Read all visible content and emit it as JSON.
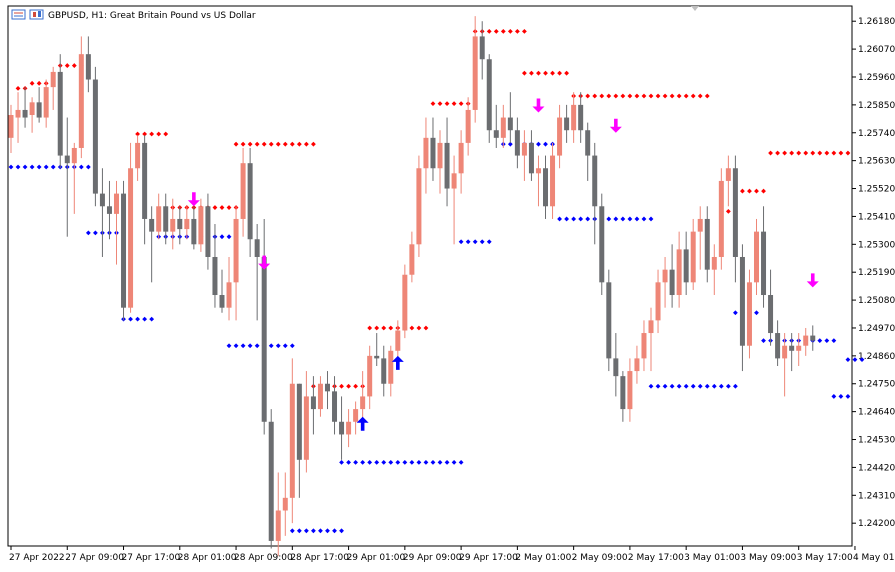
{
  "window": {
    "symbol_title": "GBPUSD, H1:  Great Britain Pound vs US Dollar",
    "icons": [
      "chart-window-icon",
      "candle-type-icon"
    ]
  },
  "colors": {
    "bull": "#ee8677",
    "bear": "#6b6d70",
    "resistance": "#ff0000",
    "support": "#0000ff",
    "sell_arrow": "#ff00ff",
    "buy_arrow": "#0000ff",
    "frame": "#000000",
    "scroll_marker": "#bfbfbf"
  },
  "chart_data": {
    "type": "candlestick",
    "symbol": "GBPUSD",
    "timeframe": "H1",
    "ylim": [
      1.2411,
      1.2624
    ],
    "y_ticks": [
      "1.26180",
      "1.26070",
      "1.25960",
      "1.25850",
      "1.25740",
      "1.25630",
      "1.25520",
      "1.25410",
      "1.25300",
      "1.25190",
      "1.25080",
      "1.24970",
      "1.24860",
      "1.24750",
      "1.24640",
      "1.24530",
      "1.24420",
      "1.24310",
      "1.24200"
    ],
    "x_labels": [
      {
        "label": "27 Apr 2022",
        "bar": 0
      },
      {
        "label": "27 Apr 09:00",
        "bar": 8
      },
      {
        "label": "27 Apr 17:00",
        "bar": 16
      },
      {
        "label": "28 Apr 01:00",
        "bar": 24
      },
      {
        "label": "28 Apr 09:00",
        "bar": 32
      },
      {
        "label": "28 Apr 17:00",
        "bar": 40
      },
      {
        "label": "29 Apr 01:00",
        "bar": 48
      },
      {
        "label": "29 Apr 09:00",
        "bar": 56
      },
      {
        "label": "29 Apr 17:00",
        "bar": 64
      },
      {
        "label": "2 May 01:00",
        "bar": 72
      },
      {
        "label": "2 May 09:00",
        "bar": 80
      },
      {
        "label": "2 May 17:00",
        "bar": 88
      },
      {
        "label": "3 May 01:00",
        "bar": 96
      },
      {
        "label": "3 May 09:00",
        "bar": 104
      },
      {
        "label": "3 May 17:00",
        "bar": 112
      },
      {
        "label": "4 May 01:00",
        "bar": 120
      }
    ],
    "candles": [
      [
        1.2572,
        1.2585,
        1.2566,
        1.2581
      ],
      [
        1.258,
        1.259,
        1.257,
        1.2583
      ],
      [
        1.2583,
        1.2592,
        1.2576,
        1.258
      ],
      [
        1.2581,
        1.2588,
        1.2574,
        1.2586
      ],
      [
        1.2586,
        1.2592,
        1.2578,
        1.258
      ],
      [
        1.258,
        1.2595,
        1.2576,
        1.2592
      ],
      [
        1.2592,
        1.26,
        1.2583,
        1.2598
      ],
      [
        1.2598,
        1.2605,
        1.256,
        1.2565
      ],
      [
        1.2565,
        1.258,
        1.2533,
        1.2562
      ],
      [
        1.2562,
        1.257,
        1.2542,
        1.2568
      ],
      [
        1.2568,
        1.2612,
        1.2564,
        1.2605
      ],
      [
        1.2605,
        1.2612,
        1.259,
        1.2595
      ],
      [
        1.2595,
        1.26,
        1.2545,
        1.255
      ],
      [
        1.255,
        1.256,
        1.2525,
        1.2545
      ],
      [
        1.2545,
        1.2555,
        1.2532,
        1.2542
      ],
      [
        1.2542,
        1.2555,
        1.2522,
        1.255
      ],
      [
        1.255,
        1.2555,
        1.25,
        1.2505
      ],
      [
        1.2505,
        1.257,
        1.2503,
        1.256
      ],
      [
        1.256,
        1.2573,
        1.2555,
        1.257
      ],
      [
        1.257,
        1.2573,
        1.253,
        1.254
      ],
      [
        1.254,
        1.2545,
        1.2515,
        1.2535
      ],
      [
        1.2535,
        1.255,
        1.2532,
        1.2545
      ],
      [
        1.2545,
        1.255,
        1.253,
        1.2535
      ],
      [
        1.2535,
        1.2548,
        1.2528,
        1.254
      ],
      [
        1.254,
        1.2545,
        1.253,
        1.2536
      ],
      [
        1.2536,
        1.2545,
        1.2532,
        1.254
      ],
      [
        1.254,
        1.2545,
        1.2528,
        1.253
      ],
      [
        1.253,
        1.2548,
        1.2527,
        1.2545
      ],
      [
        1.2545,
        1.255,
        1.252,
        1.2525
      ],
      [
        1.2525,
        1.2538,
        1.2505,
        1.251
      ],
      [
        1.251,
        1.252,
        1.2503,
        1.2505
      ],
      [
        1.2505,
        1.2525,
        1.25,
        1.2515
      ],
      [
        1.2515,
        1.2545,
        1.25,
        1.254
      ],
      [
        1.254,
        1.2568,
        1.2533,
        1.2562
      ],
      [
        1.2562,
        1.2568,
        1.2525,
        1.2532
      ],
      [
        1.2532,
        1.2538,
        1.25,
        1.2525
      ],
      [
        1.2525,
        1.254,
        1.2455,
        1.246
      ],
      [
        1.246,
        1.2465,
        1.241,
        1.2413
      ],
      [
        1.2413,
        1.244,
        1.2407,
        1.2425
      ],
      [
        1.2425,
        1.244,
        1.2415,
        1.243
      ],
      [
        1.243,
        1.2485,
        1.242,
        1.2475
      ],
      [
        1.2475,
        1.2475,
        1.243,
        1.2445
      ],
      [
        1.2445,
        1.248,
        1.244,
        1.247
      ],
      [
        1.247,
        1.2478,
        1.2455,
        1.2465
      ],
      [
        1.2465,
        1.2478,
        1.2462,
        1.2475
      ],
      [
        1.2475,
        1.248,
        1.2465,
        1.2472
      ],
      [
        1.2472,
        1.2478,
        1.2455,
        1.246
      ],
      [
        1.246,
        1.247,
        1.2445,
        1.2455
      ],
      [
        1.2455,
        1.2465,
        1.245,
        1.246
      ],
      [
        1.246,
        1.2468,
        1.2455,
        1.2465
      ],
      [
        1.2465,
        1.248,
        1.246,
        1.247
      ],
      [
        1.247,
        1.249,
        1.2465,
        1.2486
      ],
      [
        1.2486,
        1.2495,
        1.2482,
        1.2485
      ],
      [
        1.2485,
        1.249,
        1.247,
        1.2475
      ],
      [
        1.2475,
        1.249,
        1.247,
        1.2488
      ],
      [
        1.2488,
        1.25,
        1.2485,
        1.2496
      ],
      [
        1.2496,
        1.2522,
        1.2493,
        1.2518
      ],
      [
        1.2518,
        1.2535,
        1.2515,
        1.253
      ],
      [
        1.253,
        1.2565,
        1.2525,
        1.256
      ],
      [
        1.256,
        1.258,
        1.255,
        1.2572
      ],
      [
        1.2572,
        1.258,
        1.2555,
        1.256
      ],
      [
        1.256,
        1.2575,
        1.255,
        1.257
      ],
      [
        1.257,
        1.258,
        1.2545,
        1.2552
      ],
      [
        1.2552,
        1.2565,
        1.253,
        1.2558
      ],
      [
        1.2558,
        1.2575,
        1.255,
        1.257
      ],
      [
        1.257,
        1.2588,
        1.2565,
        1.2583
      ],
      [
        1.2583,
        1.262,
        1.2578,
        1.2612
      ],
      [
        1.2612,
        1.2618,
        1.2595,
        1.2603
      ],
      [
        1.2603,
        1.2605,
        1.257,
        1.2575
      ],
      [
        1.2575,
        1.2585,
        1.2568,
        1.2572
      ],
      [
        1.2572,
        1.2585,
        1.2568,
        1.258
      ],
      [
        1.258,
        1.259,
        1.257,
        1.2575
      ],
      [
        1.2575,
        1.258,
        1.256,
        1.2565
      ],
      [
        1.2565,
        1.2575,
        1.2555,
        1.257
      ],
      [
        1.257,
        1.2575,
        1.2555,
        1.2558
      ],
      [
        1.2558,
        1.2565,
        1.2545,
        1.256
      ],
      [
        1.256,
        1.2565,
        1.254,
        1.2545
      ],
      [
        1.2545,
        1.257,
        1.254,
        1.2565
      ],
      [
        1.2565,
        1.2585,
        1.256,
        1.258
      ],
      [
        1.258,
        1.2585,
        1.257,
        1.2575
      ],
      [
        1.2575,
        1.259,
        1.257,
        1.2585
      ],
      [
        1.2585,
        1.259,
        1.257,
        1.2575
      ],
      [
        1.2575,
        1.2578,
        1.2555,
        1.2565
      ],
      [
        1.2565,
        1.257,
        1.253,
        1.2545
      ],
      [
        1.2545,
        1.255,
        1.251,
        1.2515
      ],
      [
        1.2515,
        1.252,
        1.248,
        1.2485
      ],
      [
        1.2485,
        1.2495,
        1.247,
        1.2478
      ],
      [
        1.2478,
        1.248,
        1.246,
        1.2465
      ],
      [
        1.2465,
        1.2485,
        1.246,
        1.248
      ],
      [
        1.248,
        1.249,
        1.2475,
        1.2485
      ],
      [
        1.2485,
        1.25,
        1.248,
        1.2495
      ],
      [
        1.2495,
        1.2505,
        1.248,
        1.25
      ],
      [
        1.25,
        1.252,
        1.2495,
        1.2515
      ],
      [
        1.2515,
        1.2525,
        1.2505,
        1.252
      ],
      [
        1.252,
        1.253,
        1.2505,
        1.251
      ],
      [
        1.251,
        1.2535,
        1.2505,
        1.2528
      ],
      [
        1.2528,
        1.2535,
        1.251,
        1.2515
      ],
      [
        1.2515,
        1.254,
        1.2512,
        1.2535
      ],
      [
        1.2535,
        1.2545,
        1.252,
        1.254
      ],
      [
        1.254,
        1.2545,
        1.2515,
        1.252
      ],
      [
        1.252,
        1.253,
        1.251,
        1.2525
      ],
      [
        1.2525,
        1.256,
        1.252,
        1.2555
      ],
      [
        1.2555,
        1.2565,
        1.2545,
        1.256
      ],
      [
        1.256,
        1.2565,
        1.2515,
        1.2525
      ],
      [
        1.2525,
        1.253,
        1.248,
        1.249
      ],
      [
        1.249,
        1.252,
        1.2485,
        1.2515
      ],
      [
        1.2515,
        1.254,
        1.251,
        1.2535
      ],
      [
        1.2535,
        1.2545,
        1.2505,
        1.251
      ],
      [
        1.251,
        1.252,
        1.249,
        1.2495
      ],
      [
        1.2495,
        1.25,
        1.2482,
        1.2485
      ],
      [
        1.2485,
        1.2495,
        1.247,
        1.249
      ],
      [
        1.249,
        1.2495,
        1.248,
        1.2488
      ],
      [
        1.2488,
        1.2495,
        1.2482,
        1.249
      ],
      [
        1.249,
        1.2497,
        1.2486,
        1.2494
      ],
      [
        1.2494,
        1.2498,
        1.2488,
        1.2492
      ]
    ],
    "resistance_segments": [
      {
        "from": 1,
        "to": 2,
        "price": 1.25915
      },
      {
        "from": 3,
        "to": 5,
        "price": 1.25935
      },
      {
        "from": 7,
        "to": 11,
        "price": 1.26005
      },
      {
        "from": 18,
        "to": 22,
        "price": 1.25735
      },
      {
        "from": 23,
        "to": 32,
        "price": 1.25445
      },
      {
        "from": 32,
        "to": 43,
        "price": 1.25695
      },
      {
        "from": 43,
        "to": 51,
        "price": 1.2474
      },
      {
        "from": 51,
        "to": 59,
        "price": 1.2497
      },
      {
        "from": 60,
        "to": 65,
        "price": 1.25855
      },
      {
        "from": 66,
        "to": 73,
        "price": 1.2614
      },
      {
        "from": 73,
        "to": 79,
        "price": 1.25975
      },
      {
        "from": 80,
        "to": 99,
        "price": 1.25885
      },
      {
        "from": 101,
        "to": 103,
        "price": 1.2543
      },
      {
        "from": 104,
        "to": 107,
        "price": 1.2551
      },
      {
        "from": 108,
        "to": 119,
        "price": 1.2566
      }
    ],
    "support_segments": [
      {
        "from": 0,
        "to": 11,
        "price": 1.25605
      },
      {
        "from": 11,
        "to": 16,
        "price": 1.25345
      },
      {
        "from": 16,
        "to": 20,
        "price": 1.25005
      },
      {
        "from": 21,
        "to": 31,
        "price": 1.2533
      },
      {
        "from": 31,
        "to": 40,
        "price": 1.249
      },
      {
        "from": 40,
        "to": 47,
        "price": 1.2417
      },
      {
        "from": 47,
        "to": 64,
        "price": 1.2444
      },
      {
        "from": 64,
        "to": 68,
        "price": 1.2531
      },
      {
        "from": 70,
        "to": 78,
        "price": 1.25695
      },
      {
        "from": 78,
        "to": 91,
        "price": 1.254
      },
      {
        "from": 91,
        "to": 103,
        "price": 1.2474
      },
      {
        "from": 103,
        "to": 106,
        "price": 1.2503
      },
      {
        "from": 107,
        "to": 117,
        "price": 1.2492
      },
      {
        "from": 117,
        "to": 119,
        "price": 1.247
      },
      {
        "from": 119,
        "to": 121,
        "price": 1.24845
      }
    ],
    "sell_arrows": [
      {
        "bar": 26,
        "price": 1.2545
      },
      {
        "bar": 36,
        "price": 1.252
      },
      {
        "bar": 75,
        "price": 1.2582
      },
      {
        "bar": 86,
        "price": 1.2574
      },
      {
        "bar": 114,
        "price": 1.2513
      }
    ],
    "buy_arrows": [
      {
        "bar": 50,
        "price": 1.2462
      },
      {
        "bar": 55,
        "price": 1.2486
      }
    ]
  }
}
